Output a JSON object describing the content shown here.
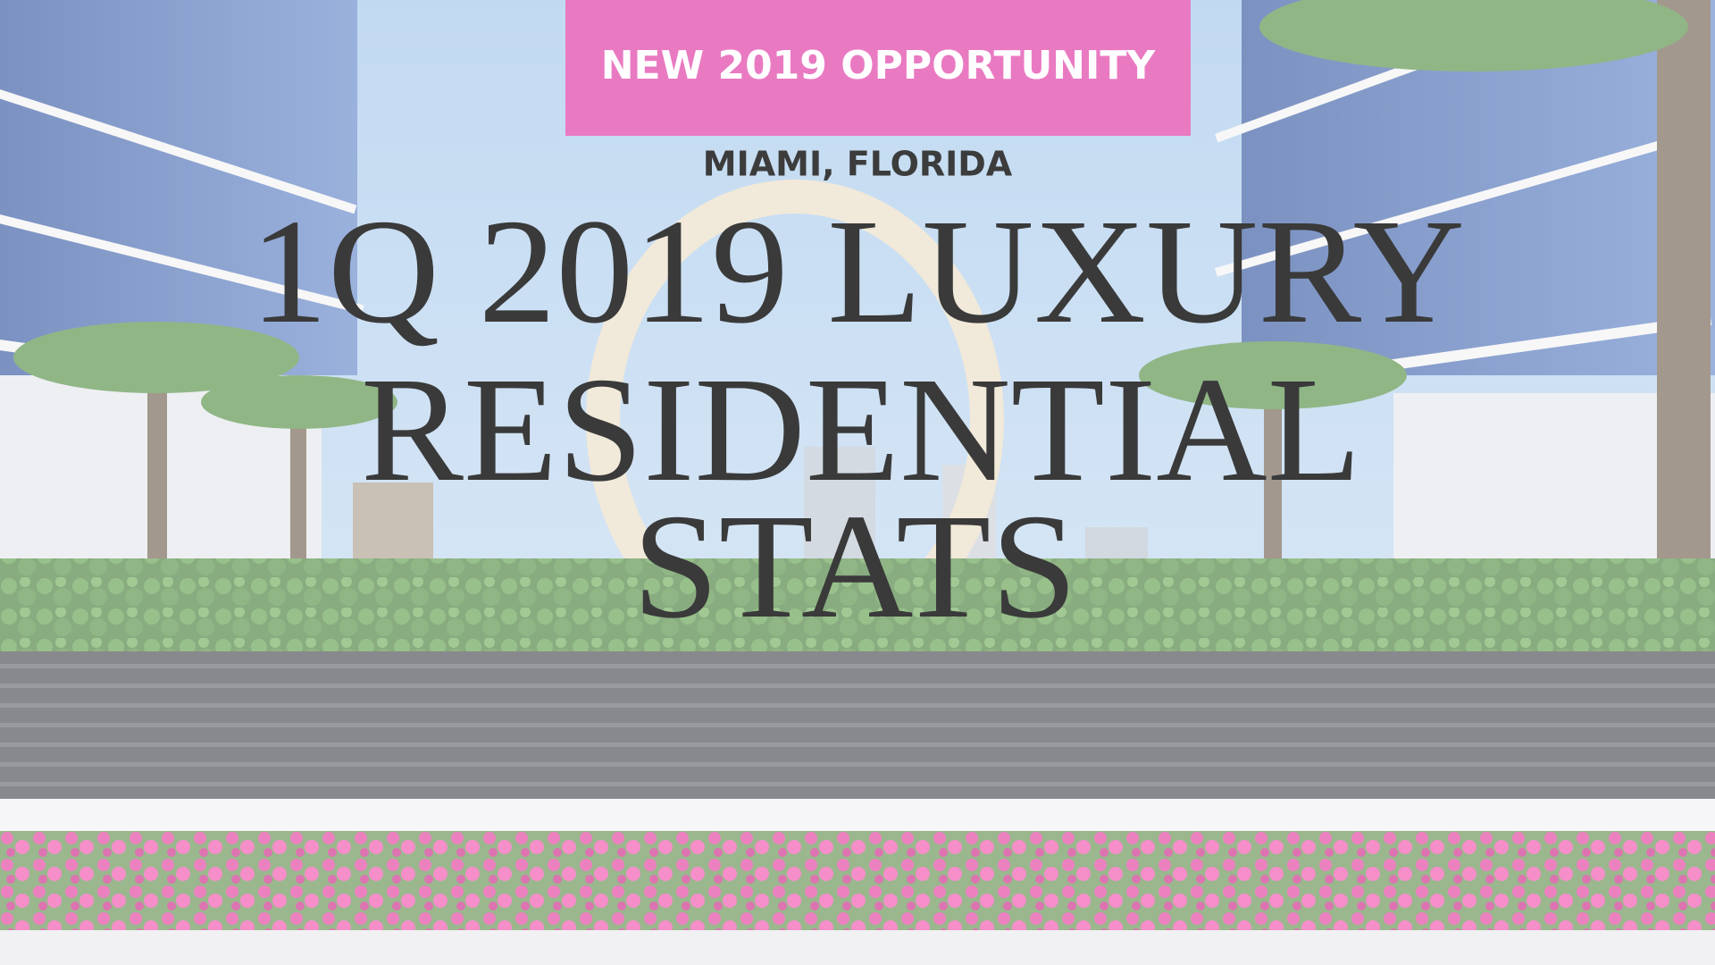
{
  "badge": "NEW 2019 OPPORTUNITY",
  "location": "MIAMI, FLORIDA",
  "title_lines": [
    "1Q 2019 LUXURY",
    "RESIDENTIAL",
    "STATS"
  ]
}
